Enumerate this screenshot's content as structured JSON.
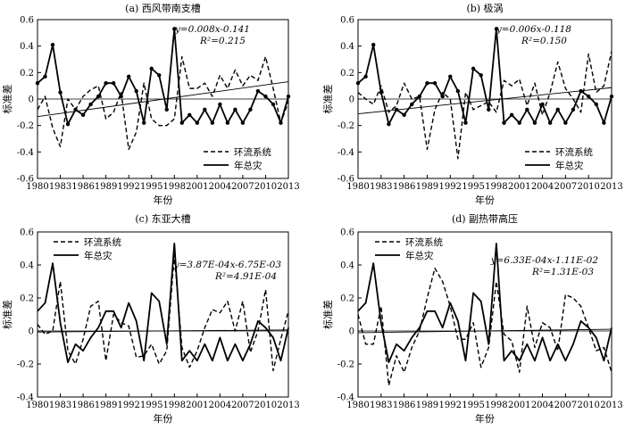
{
  "chart_data": [
    {
      "type": "line",
      "title": "(a) 西风带南支槽",
      "xlabel": "年份",
      "ylabel": "标准差",
      "ylim": [
        -0.6,
        0.6
      ],
      "yticks": [
        "0.6",
        "0.4",
        "0.2",
        "0",
        "-0.2",
        "-0.4",
        "-0.6"
      ],
      "xticks": [
        "1980",
        "1983",
        "1986",
        "1989",
        "1992",
        "1995",
        "1998",
        "2001",
        "2004",
        "2007",
        "2010",
        "2013"
      ],
      "legend": {
        "position": "lower-right",
        "entries": [
          "环流系统",
          "年总灾"
        ]
      },
      "trend": {
        "equation": "y=0.008x-0.141",
        "r2": "R²=0.215",
        "slope": 0.008,
        "intercept": -0.141
      },
      "x": [
        1980,
        1981,
        1982,
        1983,
        1984,
        1985,
        1986,
        1987,
        1988,
        1989,
        1990,
        1991,
        1992,
        1993,
        1994,
        1995,
        1996,
        1997,
        1998,
        1999,
        2000,
        2001,
        2002,
        2003,
        2004,
        2005,
        2006,
        2007,
        2008,
        2009,
        2010,
        2011,
        2012,
        2013
      ],
      "series": [
        {
          "name": "环流系统",
          "style": "dashed",
          "values": [
            -0.08,
            0.02,
            -0.22,
            -0.36,
            0.0,
            -0.08,
            0.02,
            0.07,
            0.1,
            -0.15,
            -0.1,
            0.05,
            -0.38,
            -0.25,
            0.12,
            -0.15,
            -0.2,
            -0.2,
            -0.15,
            0.32,
            0.08,
            0.08,
            0.12,
            0.02,
            0.18,
            0.08,
            0.22,
            0.1,
            0.18,
            0.14,
            0.32,
            0.08,
            -0.18,
            -0.02
          ]
        },
        {
          "name": "年总灾",
          "style": "solid",
          "values": [
            0.12,
            0.17,
            0.41,
            0.05,
            -0.19,
            -0.08,
            -0.12,
            -0.04,
            0.02,
            0.12,
            0.12,
            0.02,
            0.17,
            0.06,
            -0.18,
            0.23,
            0.18,
            -0.08,
            0.53,
            -0.18,
            -0.12,
            -0.18,
            -0.08,
            -0.18,
            -0.04,
            -0.18,
            -0.08,
            -0.18,
            -0.08,
            0.06,
            0.02,
            -0.04,
            -0.18,
            0.02
          ]
        }
      ]
    },
    {
      "type": "line",
      "title": "(b) 极涡",
      "xlabel": "年份",
      "ylabel": "标准差",
      "ylim": [
        -0.6,
        0.6
      ],
      "yticks": [
        "0.6",
        "0.4",
        "0.2",
        "0",
        "-0.2",
        "-0.4",
        "-0.6"
      ],
      "xticks": [
        "1980",
        "1983",
        "1986",
        "1989",
        "1992",
        "1995",
        "1998",
        "2001",
        "2004",
        "2007",
        "2010",
        "2013"
      ],
      "legend": {
        "position": "lower-right",
        "entries": [
          "环流系统",
          "年总灾"
        ]
      },
      "trend": {
        "equation": "y=0.006x-0.118",
        "r2": "R²=0.150",
        "slope": 0.006,
        "intercept": -0.118
      },
      "x": [
        1980,
        1981,
        1982,
        1983,
        1984,
        1985,
        1986,
        1987,
        1988,
        1989,
        1990,
        1991,
        1992,
        1993,
        1994,
        1995,
        1996,
        1997,
        1998,
        1999,
        2000,
        2001,
        2002,
        2003,
        2004,
        2005,
        2006,
        2007,
        2008,
        2009,
        2010,
        2011,
        2012,
        2013
      ],
      "series": [
        {
          "name": "环流系统",
          "style": "dashed",
          "values": [
            0.05,
            0.0,
            -0.04,
            0.1,
            -0.1,
            -0.05,
            0.12,
            0.0,
            0.02,
            -0.38,
            -0.08,
            0.05,
            0.0,
            -0.45,
            0.05,
            -0.08,
            -0.05,
            -0.02,
            -0.1,
            0.14,
            0.1,
            0.15,
            -0.05,
            0.12,
            -0.12,
            0.05,
            0.28,
            0.08,
            0.0,
            -0.1,
            0.34,
            0.05,
            0.1,
            0.36
          ]
        },
        {
          "name": "年总灾",
          "style": "solid",
          "values": [
            0.12,
            0.17,
            0.41,
            0.05,
            -0.19,
            -0.08,
            -0.12,
            -0.04,
            0.02,
            0.12,
            0.12,
            0.02,
            0.17,
            0.06,
            -0.18,
            0.23,
            0.18,
            -0.08,
            0.53,
            -0.18,
            -0.12,
            -0.18,
            -0.08,
            -0.18,
            -0.04,
            -0.18,
            -0.08,
            -0.18,
            -0.08,
            0.06,
            0.02,
            -0.04,
            -0.18,
            0.02
          ]
        }
      ]
    },
    {
      "type": "line",
      "title": "(c) 东亚大槽",
      "xlabel": "年份",
      "ylabel": "标准差",
      "ylim": [
        -0.4,
        0.6
      ],
      "yticks": [
        "0.6",
        "0.4",
        "0.2",
        "0",
        "-0.2",
        "-0.4"
      ],
      "xticks": [
        "1980",
        "1983",
        "1986",
        "1989",
        "1992",
        "1995",
        "1998",
        "2001",
        "2004",
        "2007",
        "2010",
        "2013"
      ],
      "legend": {
        "position": "top-left",
        "entries": [
          "环流系统",
          "年总灾"
        ]
      },
      "trend": {
        "equation": "y=3.87E-04x-6.75E-03",
        "r2": "R²=4.91E-04",
        "slope": 0.000387,
        "intercept": -0.00675
      },
      "x": [
        1980,
        1981,
        1982,
        1983,
        1984,
        1985,
        1986,
        1987,
        1988,
        1989,
        1990,
        1991,
        1992,
        1993,
        1994,
        1995,
        1996,
        1997,
        1998,
        1999,
        2000,
        2001,
        2002,
        2003,
        2004,
        2005,
        2006,
        2007,
        2008,
        2009,
        2010,
        2011,
        2012,
        2013
      ],
      "series": [
        {
          "name": "环流系统",
          "style": "dashed",
          "values": [
            0.04,
            -0.02,
            0.0,
            0.3,
            -0.12,
            -0.2,
            -0.05,
            0.15,
            0.18,
            -0.18,
            0.1,
            0.05,
            0.03,
            -0.16,
            -0.15,
            -0.08,
            -0.2,
            -0.12,
            0.46,
            -0.1,
            -0.22,
            -0.12,
            0.02,
            0.13,
            0.11,
            0.18,
            0.0,
            0.18,
            -0.13,
            0.0,
            0.25,
            -0.24,
            -0.05,
            0.12
          ]
        },
        {
          "name": "年总灾",
          "style": "solid",
          "values": [
            0.12,
            0.17,
            0.41,
            0.05,
            -0.19,
            -0.08,
            -0.12,
            -0.04,
            0.02,
            0.12,
            0.12,
            0.02,
            0.17,
            0.06,
            -0.18,
            0.23,
            0.18,
            -0.08,
            0.53,
            -0.18,
            -0.12,
            -0.18,
            -0.08,
            -0.18,
            -0.04,
            -0.18,
            -0.08,
            -0.18,
            -0.08,
            0.06,
            0.02,
            -0.04,
            -0.18,
            0.02
          ]
        }
      ]
    },
    {
      "type": "line",
      "title": "(d) 副热带高压",
      "xlabel": "年份",
      "ylabel": "标准差",
      "ylim": [
        -0.4,
        0.6
      ],
      "yticks": [
        "0.6",
        "0.4",
        "0.2",
        "0",
        "-0.2",
        "-0.4"
      ],
      "xticks": [
        "1980",
        "1983",
        "1986",
        "1989",
        "1992",
        "1995",
        "1998",
        "2001",
        "2004",
        "2007",
        "2010",
        "2013"
      ],
      "legend": {
        "position": "top-center",
        "entries": [
          "环流系统",
          "年总灾"
        ]
      },
      "trend": {
        "equation": "y=6.33E-04x-1.11E-02",
        "r2": "R²=1.31E-03",
        "slope": 0.000633,
        "intercept": -0.0111
      },
      "x": [
        1980,
        1981,
        1982,
        1983,
        1984,
        1985,
        1986,
        1987,
        1988,
        1989,
        1990,
        1991,
        1992,
        1993,
        1994,
        1995,
        1996,
        1997,
        1998,
        1999,
        2000,
        2001,
        2002,
        2003,
        2004,
        2005,
        2006,
        2007,
        2008,
        2009,
        2010,
        2011,
        2012,
        2013
      ],
      "series": [
        {
          "name": "环流系统",
          "style": "dashed",
          "values": [
            0.1,
            -0.08,
            -0.08,
            0.15,
            -0.33,
            -0.15,
            -0.25,
            -0.1,
            0.0,
            0.2,
            0.38,
            0.3,
            0.15,
            -0.05,
            -0.05,
            0.05,
            -0.22,
            -0.1,
            0.3,
            -0.02,
            -0.06,
            -0.25,
            0.15,
            -0.1,
            0.05,
            0.02,
            -0.12,
            0.22,
            0.2,
            0.15,
            0.02,
            -0.12,
            -0.1,
            -0.25
          ]
        },
        {
          "name": "年总灾",
          "style": "solid",
          "values": [
            0.12,
            0.17,
            0.41,
            0.05,
            -0.19,
            -0.08,
            -0.12,
            -0.04,
            0.02,
            0.12,
            0.12,
            0.02,
            0.17,
            0.06,
            -0.18,
            0.23,
            0.18,
            -0.08,
            0.53,
            -0.18,
            -0.12,
            -0.18,
            -0.08,
            -0.18,
            -0.04,
            -0.18,
            -0.08,
            -0.18,
            -0.08,
            0.06,
            0.02,
            -0.04,
            -0.18,
            0.02
          ]
        }
      ]
    }
  ]
}
